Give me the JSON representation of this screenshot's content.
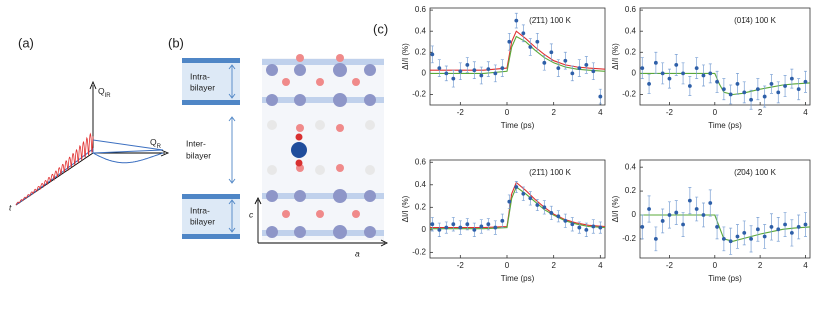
{
  "panels": {
    "a": "(a)",
    "b": "(b)",
    "c": "(c)"
  },
  "diagram_a": {
    "q_ir": {
      "main": "Q",
      "sub": "IR"
    },
    "q_r": {
      "main": "Q",
      "sub": "R"
    },
    "t": "t"
  },
  "diagram_b": {
    "intra_top": [
      "Intra-",
      "bilayer"
    ],
    "inter": [
      "Inter-",
      "bilayer"
    ],
    "intra_bottom": [
      "Intra-",
      "bilayer"
    ],
    "axis_c": "c",
    "axis_a": "a"
  },
  "chart_data": [
    {
      "type": "scatter",
      "title": "(2̄1̄1) 100 K",
      "xlabel": "Time (ps)",
      "ylabel": "ΔI/I (%)",
      "xlim": [
        -3.3,
        4.2
      ],
      "xticks": [
        -2,
        0,
        2,
        4
      ],
      "ylim": [
        -0.3,
        0.62
      ],
      "yticks": [
        -0.2,
        0,
        0.2,
        0.4,
        0.6
      ],
      "x": [
        -3.2,
        -2.9,
        -2.6,
        -2.3,
        -2.0,
        -1.7,
        -1.4,
        -1.1,
        -0.8,
        -0.5,
        -0.2,
        0.1,
        0.4,
        0.7,
        1.0,
        1.3,
        1.6,
        1.9,
        2.2,
        2.5,
        2.8,
        3.1,
        3.4,
        3.7,
        4.0
      ],
      "series": [
        {
          "color": "#2e5fa8",
          "values": [
            0.18,
            0.05,
            0.0,
            -0.05,
            0.02,
            0.08,
            0.03,
            -0.02,
            0.04,
            0.0,
            0.05,
            0.3,
            0.5,
            0.38,
            0.25,
            0.3,
            0.1,
            0.2,
            0.05,
            0.12,
            0.0,
            0.05,
            0.08,
            0.02,
            -0.22
          ],
          "errors": [
            0.08,
            0.08,
            0.07,
            0.08,
            0.08,
            0.07,
            0.08,
            0.08,
            0.07,
            0.08,
            0.08,
            0.08,
            0.07,
            0.08,
            0.08,
            0.08,
            0.07,
            0.08,
            0.08,
            0.08,
            0.07,
            0.08,
            0.08,
            0.08,
            0.07
          ]
        },
        {
          "type": "line",
          "color": "#e03030",
          "x": [
            -3.3,
            -1,
            0,
            0.2,
            0.4,
            0.8,
            1.2,
            1.6,
            2,
            2.5,
            3,
            3.5,
            4.2
          ],
          "values": [
            0.03,
            0.03,
            0.05,
            0.3,
            0.4,
            0.33,
            0.25,
            0.18,
            0.12,
            0.08,
            0.06,
            0.05,
            0.04
          ]
        },
        {
          "type": "line",
          "color": "#5aa83a",
          "x": [
            -3.3,
            -1,
            0,
            0.2,
            0.4,
            0.8,
            1.2,
            1.6,
            2,
            2.5,
            3,
            3.5,
            4.2
          ],
          "values": [
            0,
            0,
            0.02,
            0.25,
            0.35,
            0.3,
            0.22,
            0.15,
            0.1,
            0.06,
            0.04,
            0.03,
            0.02
          ]
        }
      ]
    },
    {
      "type": "scatter",
      "title": "(01̄4) 100 K",
      "xlabel": "Time (ps)",
      "ylabel": "ΔI/I (%)",
      "xlim": [
        -3.3,
        4.2
      ],
      "xticks": [
        -2,
        0,
        2,
        4
      ],
      "ylim": [
        -0.3,
        0.62
      ],
      "yticks": [
        -0.2,
        0,
        0.2,
        0.4,
        0.6
      ],
      "x": [
        -3.2,
        -2.9,
        -2.6,
        -2.3,
        -2.0,
        -1.7,
        -1.4,
        -1.1,
        -0.8,
        -0.5,
        -0.2,
        0.1,
        0.4,
        0.7,
        1.0,
        1.3,
        1.6,
        1.9,
        2.2,
        2.5,
        2.8,
        3.1,
        3.4,
        3.7,
        4.0
      ],
      "series": [
        {
          "color": "#2e5fa8",
          "values": [
            0.05,
            -0.1,
            0.1,
            0.0,
            -0.05,
            0.08,
            0.0,
            -0.12,
            0.05,
            -0.02,
            0.0,
            -0.08,
            -0.15,
            -0.2,
            -0.1,
            -0.18,
            -0.25,
            -0.15,
            -0.22,
            -0.1,
            -0.18,
            -0.12,
            -0.05,
            -0.15,
            -0.08
          ],
          "errors": [
            0.1,
            0.09,
            0.1,
            0.1,
            0.09,
            0.1,
            0.1,
            0.09,
            0.1,
            0.1,
            0.09,
            0.1,
            0.1,
            0.09,
            0.1,
            0.1,
            0.09,
            0.1,
            0.1,
            0.09,
            0.1,
            0.1,
            0.09,
            0.1,
            0.1
          ]
        },
        {
          "type": "line",
          "color": "#5aa83a",
          "x": [
            -3.3,
            -1,
            0,
            0.2,
            0.4,
            0.8,
            1.2,
            1.6,
            2,
            2.5,
            3,
            3.5,
            4.2
          ],
          "values": [
            0,
            0,
            0,
            -0.1,
            -0.18,
            -0.2,
            -0.19,
            -0.17,
            -0.15,
            -0.13,
            -0.11,
            -0.1,
            -0.09
          ]
        }
      ]
    },
    {
      "type": "scatter",
      "title": "(21̄1) 100 K",
      "xlabel": "Time (ps)",
      "ylabel": "ΔI/I (%)",
      "xlim": [
        -3.3,
        4.2
      ],
      "xticks": [
        -2,
        0,
        2,
        4
      ],
      "ylim": [
        -0.25,
        0.62
      ],
      "yticks": [
        -0.2,
        0,
        0.2,
        0.4,
        0.6
      ],
      "x": [
        -3.2,
        -2.9,
        -2.6,
        -2.3,
        -2.0,
        -1.7,
        -1.4,
        -1.1,
        -0.8,
        -0.5,
        -0.2,
        0.1,
        0.4,
        0.7,
        1.0,
        1.3,
        1.6,
        1.9,
        2.2,
        2.5,
        2.8,
        3.1,
        3.4,
        3.7,
        4.0
      ],
      "series": [
        {
          "color": "#2e5fa8",
          "values": [
            0.05,
            0.0,
            0.02,
            0.05,
            0.02,
            0.05,
            0.0,
            0.03,
            0.05,
            0.02,
            0.08,
            0.25,
            0.38,
            0.32,
            0.28,
            0.22,
            0.2,
            0.15,
            0.12,
            0.08,
            0.05,
            0.02,
            0.0,
            0.03,
            0.02
          ],
          "errors": [
            0.06,
            0.06,
            0.05,
            0.06,
            0.06,
            0.05,
            0.06,
            0.06,
            0.05,
            0.06,
            0.06,
            0.06,
            0.05,
            0.06,
            0.06,
            0.05,
            0.06,
            0.06,
            0.05,
            0.06,
            0.06,
            0.05,
            0.06,
            0.06,
            0.05
          ]
        },
        {
          "type": "line",
          "color": "#e03030",
          "x": [
            -3.3,
            -1,
            0,
            0.2,
            0.4,
            0.8,
            1.2,
            1.6,
            2,
            2.5,
            3,
            3.5,
            4.2
          ],
          "values": [
            0.02,
            0.02,
            0.03,
            0.32,
            0.42,
            0.35,
            0.27,
            0.2,
            0.14,
            0.09,
            0.06,
            0.04,
            0.03
          ]
        },
        {
          "type": "line",
          "color": "#5aa83a",
          "x": [
            -3.3,
            -1,
            0,
            0.2,
            0.4,
            0.8,
            1.2,
            1.6,
            2,
            2.5,
            3,
            3.5,
            4.2
          ],
          "values": [
            0.01,
            0.01,
            0.02,
            0.28,
            0.38,
            0.32,
            0.25,
            0.18,
            0.13,
            0.08,
            0.05,
            0.03,
            0.02
          ]
        }
      ]
    },
    {
      "type": "scatter",
      "title": "(2̄04) 100 K",
      "xlabel": "Time (ps)",
      "ylabel": "ΔI/I (%)",
      "xlim": [
        -3.3,
        4.2
      ],
      "xticks": [
        -2,
        0,
        2,
        4
      ],
      "ylim": [
        -0.36,
        0.46
      ],
      "yticks": [
        -0.2,
        0,
        0.2,
        0.4
      ],
      "x": [
        -3.2,
        -2.9,
        -2.6,
        -2.3,
        -2.0,
        -1.7,
        -1.4,
        -1.1,
        -0.8,
        -0.5,
        -0.2,
        0.1,
        0.4,
        0.7,
        1.0,
        1.3,
        1.6,
        1.9,
        2.2,
        2.5,
        2.8,
        3.1,
        3.4,
        3.7,
        4.0
      ],
      "series": [
        {
          "color": "#2e5fa8",
          "values": [
            -0.1,
            0.05,
            -0.2,
            -0.05,
            0.0,
            0.02,
            -0.08,
            0.12,
            0.05,
            0.0,
            0.1,
            -0.1,
            -0.2,
            -0.22,
            -0.18,
            -0.15,
            -0.2,
            -0.12,
            -0.18,
            -0.1,
            -0.12,
            -0.08,
            -0.15,
            -0.1,
            -0.08
          ],
          "errors": [
            0.1,
            0.11,
            0.1,
            0.1,
            0.11,
            0.1,
            0.1,
            0.11,
            0.1,
            0.1,
            0.11,
            0.1,
            0.1,
            0.11,
            0.1,
            0.1,
            0.11,
            0.1,
            0.1,
            0.11,
            0.1,
            0.1,
            0.11,
            0.1,
            0.1
          ]
        },
        {
          "type": "line",
          "color": "#5aa83a",
          "x": [
            -3.3,
            -1,
            0,
            0.2,
            0.4,
            0.8,
            1.2,
            1.6,
            2,
            2.5,
            3,
            3.5,
            4.2
          ],
          "values": [
            0,
            0,
            0,
            -0.1,
            -0.2,
            -0.22,
            -0.2,
            -0.18,
            -0.16,
            -0.14,
            -0.12,
            -0.11,
            -0.1
          ]
        }
      ]
    }
  ]
}
